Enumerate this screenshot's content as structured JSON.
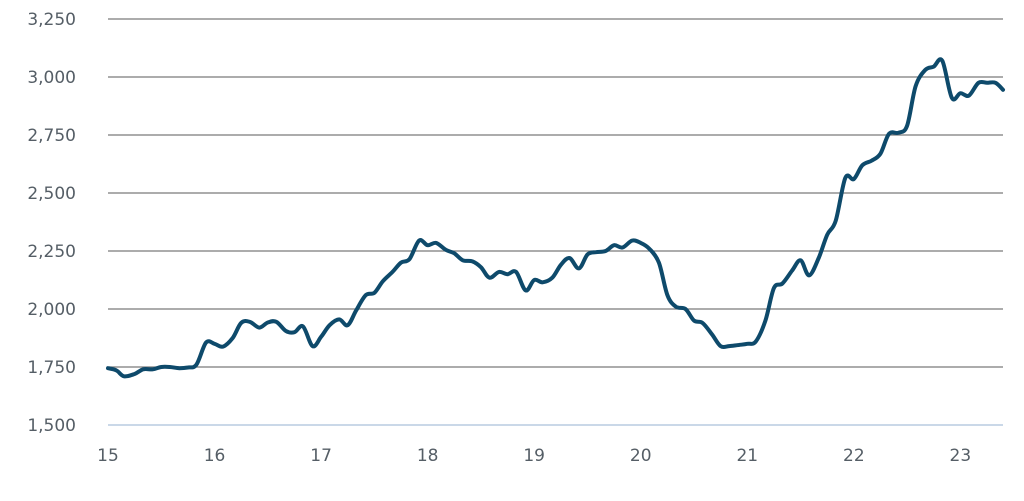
{
  "chart_data": {
    "type": "line",
    "title": "",
    "xlabel": "",
    "ylabel": "",
    "ylim": [
      1500,
      3250
    ],
    "xlim": [
      15,
      23.4
    ],
    "grid": true,
    "legend": "none",
    "x_ticks": [
      {
        "value": 15,
        "label": "15"
      },
      {
        "value": 16,
        "label": "16"
      },
      {
        "value": 17,
        "label": "17"
      },
      {
        "value": 18,
        "label": "18"
      },
      {
        "value": 19,
        "label": "19"
      },
      {
        "value": 20,
        "label": "20"
      },
      {
        "value": 21,
        "label": "21"
      },
      {
        "value": 22,
        "label": "22"
      },
      {
        "value": 23,
        "label": "23"
      }
    ],
    "y_ticks": [
      {
        "value": 1500,
        "label": "1,500"
      },
      {
        "value": 1750,
        "label": "1,750"
      },
      {
        "value": 2000,
        "label": "2,000"
      },
      {
        "value": 2250,
        "label": "2,250"
      },
      {
        "value": 2500,
        "label": "2,500"
      },
      {
        "value": 2750,
        "label": "2,750"
      },
      {
        "value": 3000,
        "label": "3,000"
      },
      {
        "value": 3250,
        "label": "3,250"
      }
    ],
    "series": [
      {
        "color": "#0e4a6b",
        "x": [
          15.0,
          15.08,
          15.15,
          15.25,
          15.33,
          15.42,
          15.5,
          15.58,
          15.67,
          15.75,
          15.83,
          15.92,
          16.0,
          16.08,
          16.17,
          16.25,
          16.33,
          16.42,
          16.5,
          16.58,
          16.67,
          16.75,
          16.83,
          16.92,
          17.0,
          17.08,
          17.17,
          17.25,
          17.33,
          17.42,
          17.5,
          17.58,
          17.67,
          17.75,
          17.83,
          17.92,
          18.0,
          18.08,
          18.17,
          18.25,
          18.33,
          18.42,
          18.5,
          18.58,
          18.67,
          18.75,
          18.83,
          18.92,
          19.0,
          19.08,
          19.17,
          19.25,
          19.33,
          19.42,
          19.5,
          19.58,
          19.67,
          19.75,
          19.83,
          19.92,
          20.0,
          20.08,
          20.17,
          20.25,
          20.33,
          20.42,
          20.5,
          20.58,
          20.67,
          20.75,
          20.83,
          20.92,
          21.0,
          21.08,
          21.17,
          21.25,
          21.33,
          21.42,
          21.5,
          21.58,
          21.67,
          21.75,
          21.83,
          21.92,
          22.0,
          22.08,
          22.17,
          22.25,
          22.33,
          22.42,
          22.5,
          22.58,
          22.67,
          22.75,
          22.83,
          22.92,
          23.0,
          23.08,
          23.17,
          23.25,
          23.33,
          23.4
        ],
        "values": [
          1745,
          1735,
          1710,
          1720,
          1740,
          1740,
          1750,
          1750,
          1745,
          1748,
          1760,
          1855,
          1850,
          1838,
          1875,
          1940,
          1945,
          1920,
          1942,
          1945,
          1905,
          1900,
          1925,
          1840,
          1880,
          1930,
          1955,
          1930,
          1995,
          2060,
          2070,
          2120,
          2160,
          2200,
          2215,
          2295,
          2275,
          2285,
          2255,
          2240,
          2210,
          2205,
          2180,
          2135,
          2160,
          2150,
          2160,
          2080,
          2125,
          2115,
          2135,
          2190,
          2220,
          2175,
          2235,
          2245,
          2250,
          2275,
          2265,
          2295,
          2285,
          2260,
          2200,
          2060,
          2010,
          2000,
          1950,
          1940,
          1890,
          1840,
          1840,
          1845,
          1850,
          1860,
          1950,
          2090,
          2110,
          2165,
          2210,
          2145,
          2220,
          2320,
          2380,
          2565,
          2560,
          2620,
          2640,
          2670,
          2755,
          2760,
          2790,
          2960,
          3030,
          3045,
          3070,
          2910,
          2930,
          2920,
          2975,
          2975,
          2975,
          2945
        ]
      }
    ]
  }
}
